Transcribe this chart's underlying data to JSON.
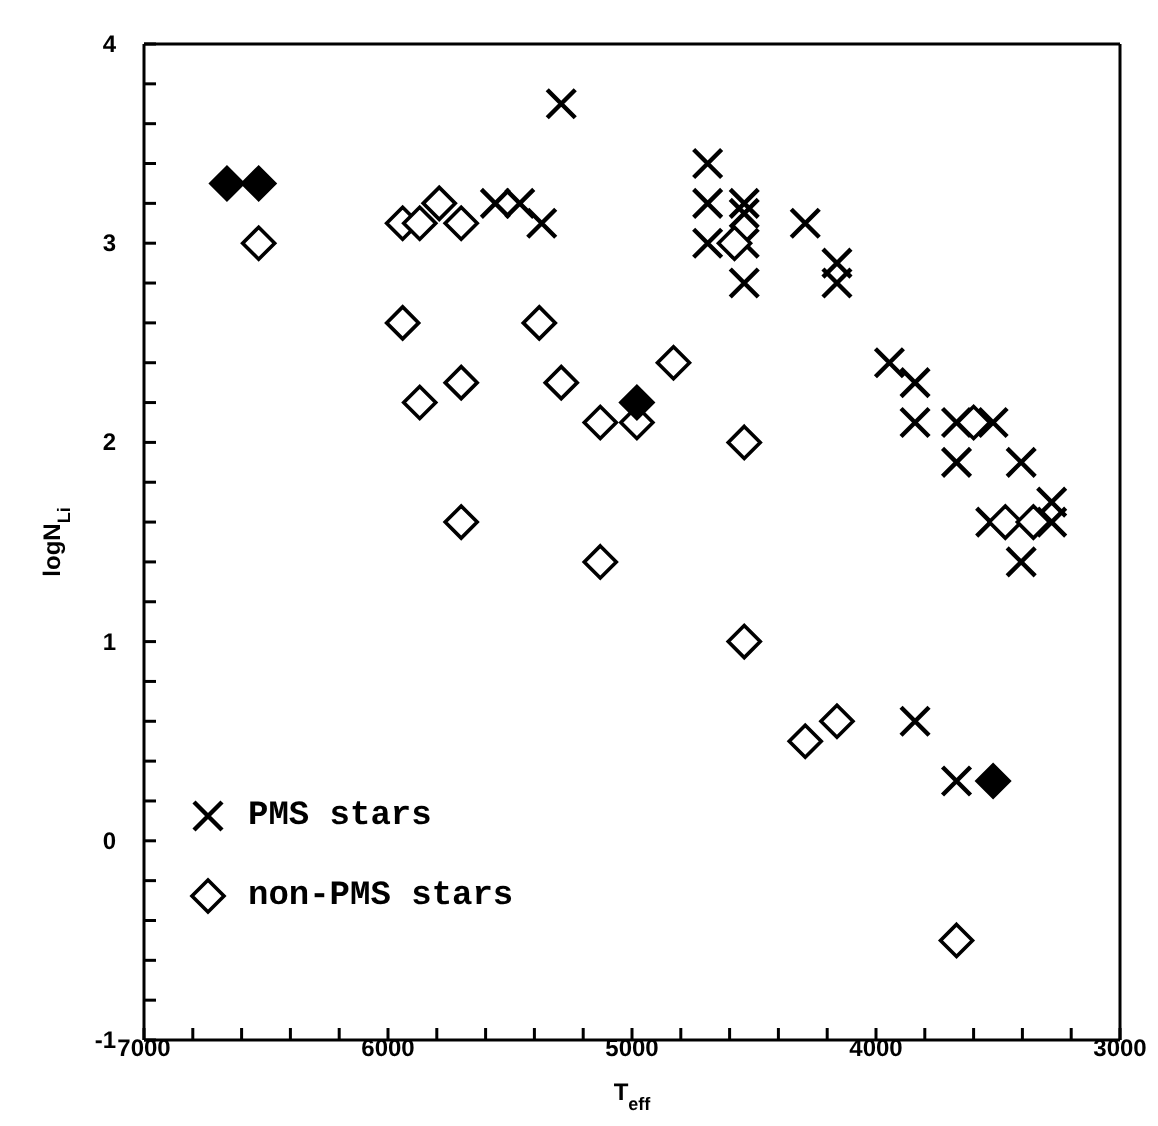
{
  "chart_data": {
    "type": "scatter",
    "xlabel": "T$_{eff}$",
    "ylabel": "logN$_{Li}$",
    "xlim": [
      7000,
      3000
    ],
    "ylim": [
      -1,
      4
    ],
    "xticks": [
      7000,
      {
        "value": 6800,
        "label": null
      },
      {
        "value": 6600,
        "label": null
      },
      {
        "value": 6400,
        "label": null
      },
      {
        "value": 6200,
        "label": null
      },
      6000,
      {
        "value": 5800,
        "label": null
      },
      {
        "value": 5600,
        "label": null
      },
      {
        "value": 5400,
        "label": null
      },
      {
        "value": 5200,
        "label": null
      },
      5000,
      {
        "value": 4800,
        "label": null
      },
      {
        "value": 4600,
        "label": null
      },
      {
        "value": 4400,
        "label": null
      },
      {
        "value": 4200,
        "label": null
      },
      4000,
      {
        "value": 3800,
        "label": null
      },
      {
        "value": 3600,
        "label": null
      },
      {
        "value": 3400,
        "label": null
      },
      {
        "value": 3200,
        "label": null
      },
      3000
    ],
    "yticks": [
      -1,
      {
        "value": -0.8,
        "label": null
      },
      {
        "value": -0.6,
        "label": null
      },
      {
        "value": -0.4,
        "label": null
      },
      {
        "value": -0.2,
        "label": null
      },
      0,
      {
        "value": 0.2,
        "label": null
      },
      {
        "value": 0.4,
        "label": null
      },
      {
        "value": 0.6,
        "label": null
      },
      {
        "value": 0.8,
        "label": null
      },
      1,
      {
        "value": 1.2,
        "label": null
      },
      {
        "value": 1.4,
        "label": null
      },
      {
        "value": 1.6,
        "label": null
      },
      {
        "value": 1.8,
        "label": null
      },
      2,
      {
        "value": 2.2,
        "label": null
      },
      {
        "value": 2.4,
        "label": null
      },
      {
        "value": 2.6,
        "label": null
      },
      {
        "value": 2.8,
        "label": null
      },
      3,
      {
        "value": 3.2,
        "label": null
      },
      {
        "value": 3.4,
        "label": null
      },
      {
        "value": 3.6,
        "label": null
      },
      {
        "value": 3.8,
        "label": null
      },
      4
    ],
    "grid": false,
    "legend": "bottom left",
    "series": [
      {
        "name": "PMS stars",
        "color": "#000000",
        "marker": "cross",
        "x": [
          5290,
          5560,
          5460,
          5370,
          4690,
          4690,
          4690,
          4540,
          4540,
          4540,
          4540,
          4290,
          4160,
          4160,
          3945,
          3840,
          3840,
          3670,
          3670,
          3520,
          3405,
          3530,
          3405,
          3280,
          3280,
          3840,
          3670
        ],
        "values": [
          3.7,
          3.2,
          3.2,
          3.1,
          3.4,
          3.2,
          3.0,
          3.2,
          3.15,
          3.0,
          2.8,
          3.1,
          2.9,
          2.8,
          2.4,
          2.3,
          2.1,
          2.1,
          1.9,
          2.1,
          1.9,
          1.6,
          1.4,
          1.7,
          1.6,
          0.6,
          0.3
        ]
      },
      {
        "name": "non-PMS stars",
        "color": "#000000",
        "marker": "diamond",
        "x": [
          6530,
          5940,
          5870,
          5790,
          5700,
          5940,
          5870,
          5700,
          5380,
          5290,
          5130,
          4980,
          4830,
          4540,
          5700,
          5130,
          4580,
          3600,
          3470,
          3355,
          4540,
          4290,
          4160,
          3670
        ],
        "values": [
          3.0,
          3.1,
          3.1,
          3.2,
          3.1,
          2.6,
          2.2,
          2.3,
          2.6,
          2.3,
          2.1,
          2.1,
          2.4,
          2.0,
          1.6,
          1.4,
          3.0,
          2.1,
          1.6,
          1.6,
          1.0,
          0.5,
          0.6,
          -0.5
        ]
      },
      {
        "color": "#000000",
        "marker": "diamond",
        "x": [
          6660,
          6530,
          4980,
          3520
        ],
        "values": [
          3.3,
          3.3,
          2.2,
          0.3
        ]
      }
    ]
  }
}
